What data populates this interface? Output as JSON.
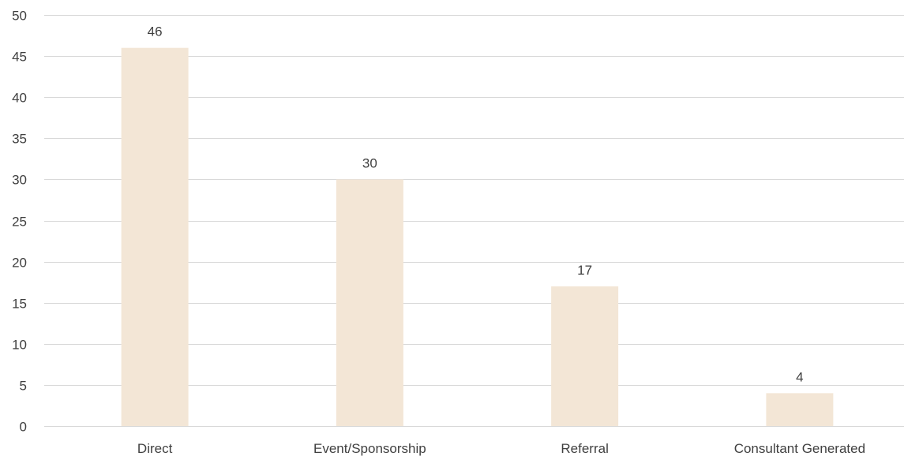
{
  "chart_data": {
    "type": "bar",
    "categories": [
      "Direct",
      "Event/Sponsorship",
      "Referral",
      "Consultant Generated"
    ],
    "values": [
      46,
      30,
      17,
      4
    ],
    "ylim": [
      0,
      50
    ],
    "yticks": [
      0,
      5,
      10,
      15,
      20,
      25,
      30,
      35,
      40,
      45,
      50
    ],
    "grid": true,
    "data_labels": true,
    "bar_color": "#f3e6d6",
    "grid_color": "#d9d9d9",
    "text_color": "#404040"
  }
}
